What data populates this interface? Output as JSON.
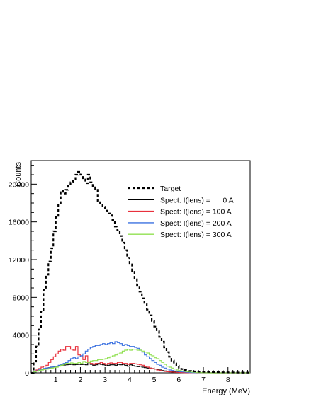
{
  "chart_data": {
    "type": "line",
    "xlabel": "Energy (MeV)",
    "ylabel": "Counts",
    "xlim": [
      0,
      8.9
    ],
    "ylim": [
      0,
      22500
    ],
    "x_ticks": [
      1,
      2,
      3,
      4,
      5,
      6,
      7,
      8
    ],
    "y_ticks": [
      0,
      4000,
      8000,
      12000,
      16000,
      20000
    ],
    "legend_position": "top-right",
    "bin_width": 0.1,
    "series": [
      {
        "name": "Target",
        "color": "#000000",
        "style": "dashed",
        "values": [
          0,
          1200,
          2800,
          4600,
          6500,
          8800,
          10400,
          11800,
          13200,
          15000,
          16500,
          18000,
          19300,
          19000,
          19400,
          20000,
          20200,
          20500,
          21000,
          21300,
          21000,
          20500,
          20100,
          21000,
          20200,
          19800,
          19500,
          18200,
          18000,
          17600,
          17200,
          16900,
          16700,
          16200,
          15500,
          15100,
          14500,
          13800,
          13000,
          12200,
          11500,
          10800,
          10000,
          9300,
          8600,
          7900,
          7300,
          6700,
          6100,
          5500,
          4900,
          4400,
          3800,
          3300,
          2700,
          2200,
          1700,
          1300,
          1000,
          750,
          550,
          400,
          300,
          250,
          200,
          180,
          150,
          130,
          120,
          110,
          100,
          100,
          90,
          80,
          80,
          70,
          70,
          60,
          60,
          60,
          50,
          50,
          50,
          40,
          40,
          40,
          30,
          30,
          30
        ]
      },
      {
        "name": "Spect: I(lens) =      0 A",
        "color": "#000000",
        "style": "solid",
        "values": [
          0,
          100,
          200,
          300,
          400,
          450,
          500,
          550,
          600,
          650,
          700,
          750,
          800,
          820,
          850,
          880,
          900,
          850,
          880,
          900,
          880,
          900,
          850,
          1100,
          900,
          800,
          850,
          1000,
          900,
          850,
          750,
          800,
          850,
          850,
          800,
          900,
          850,
          900,
          800,
          700,
          850,
          750,
          700,
          650,
          700,
          600,
          550,
          500,
          500,
          450,
          400,
          350,
          300,
          250,
          200,
          180,
          150,
          120,
          100,
          80,
          70,
          60,
          50,
          40,
          30,
          30,
          20,
          20,
          10,
          10,
          10,
          10,
          10,
          10,
          0,
          0,
          0,
          0,
          0,
          0,
          0,
          0,
          0,
          0,
          0,
          0,
          0,
          0,
          0
        ]
      },
      {
        "name": "Spect: I(lens) = 100 A",
        "color": "#e8303c",
        "style": "solid",
        "values": [
          0,
          150,
          300,
          450,
          600,
          700,
          800,
          1100,
          1400,
          1700,
          2000,
          2300,
          2500,
          2400,
          2800,
          2800,
          2500,
          2400,
          2800,
          1900,
          1800,
          1400,
          1800,
          1100,
          1000,
          900,
          1000,
          950,
          1100,
          1000,
          900,
          1000,
          1050,
          1000,
          1000,
          1100,
          1100,
          1000,
          1000,
          900,
          1000,
          1000,
          950,
          900,
          850,
          800,
          650,
          600,
          500,
          450,
          400,
          300,
          250,
          200,
          150,
          120,
          100,
          80,
          60,
          50,
          40,
          30,
          20,
          20,
          10,
          10,
          10,
          0,
          0,
          0,
          0,
          0,
          0,
          0,
          0,
          0,
          0,
          0,
          0,
          0,
          0,
          0,
          0,
          0,
          0,
          0,
          0,
          0,
          0
        ]
      },
      {
        "name": "Spect: I(lens) = 200 A",
        "color": "#3a70e0",
        "style": "solid",
        "values": [
          0,
          100,
          200,
          300,
          400,
          450,
          500,
          550,
          600,
          650,
          700,
          800,
          900,
          1000,
          1100,
          1300,
          1500,
          1600,
          1500,
          1700,
          1800,
          2000,
          2300,
          2500,
          2700,
          2800,
          2900,
          2900,
          3000,
          3100,
          3000,
          3100,
          3200,
          3100,
          3300,
          3200,
          3100,
          2900,
          3000,
          2900,
          2800,
          2800,
          2700,
          2600,
          2400,
          2200,
          1900,
          1700,
          1500,
          1300,
          1100,
          900,
          800,
          600,
          500,
          400,
          300,
          250,
          200,
          150,
          120,
          100,
          80,
          60,
          40,
          30,
          20,
          20,
          10,
          10,
          0,
          0,
          0,
          0,
          0,
          0,
          0,
          0,
          0,
          0,
          0,
          0,
          0,
          0,
          0,
          0,
          0,
          0,
          0
        ]
      },
      {
        "name": "Spect: I(lens) = 300 A",
        "color": "#90e050",
        "style": "solid",
        "values": [
          0,
          100,
          180,
          250,
          300,
          350,
          400,
          450,
          500,
          550,
          600,
          700,
          800,
          900,
          1000,
          1000,
          1050,
          1000,
          1000,
          1100,
          1000,
          1200,
          1100,
          1100,
          1250,
          1300,
          1300,
          1400,
          1400,
          1450,
          1500,
          1600,
          1700,
          1800,
          1900,
          2000,
          2100,
          2300,
          2400,
          2500,
          2400,
          2500,
          2500,
          2400,
          2400,
          2300,
          2200,
          2100,
          1900,
          1800,
          1600,
          1500,
          1300,
          1100,
          900,
          700,
          600,
          500,
          400,
          300,
          250,
          200,
          150,
          120,
          100,
          80,
          60,
          40,
          30,
          20,
          10,
          10,
          0,
          0,
          0,
          0,
          0,
          0,
          0,
          0,
          0,
          0,
          0,
          0,
          0,
          0,
          0,
          0,
          0
        ]
      }
    ]
  }
}
